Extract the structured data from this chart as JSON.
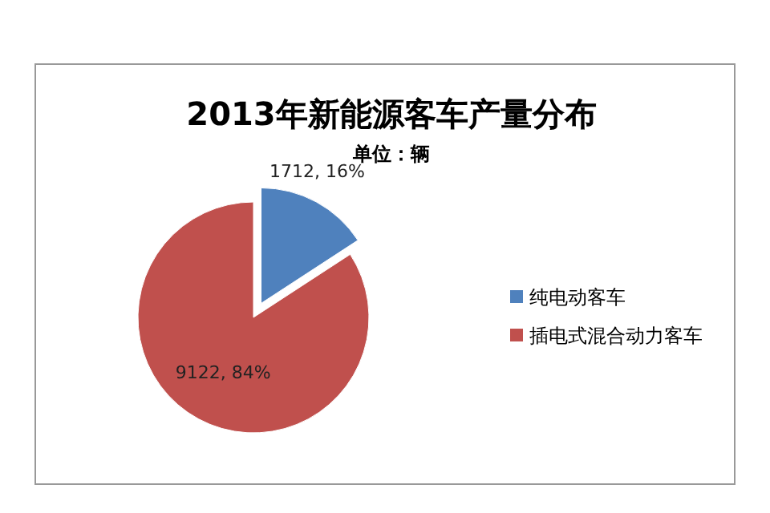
{
  "chart_data": {
    "type": "pie",
    "title": "2013年新能源客车产量分布",
    "subtitle": "单位：辆",
    "categories": [
      "纯电动客车",
      "插电式混合动力客车"
    ],
    "values": [
      1712,
      9122
    ],
    "colors": [
      "#4f81bd",
      "#c0504d"
    ],
    "value_labels": [
      "1712, 16%",
      "9122, 84%"
    ],
    "legend": "right"
  }
}
